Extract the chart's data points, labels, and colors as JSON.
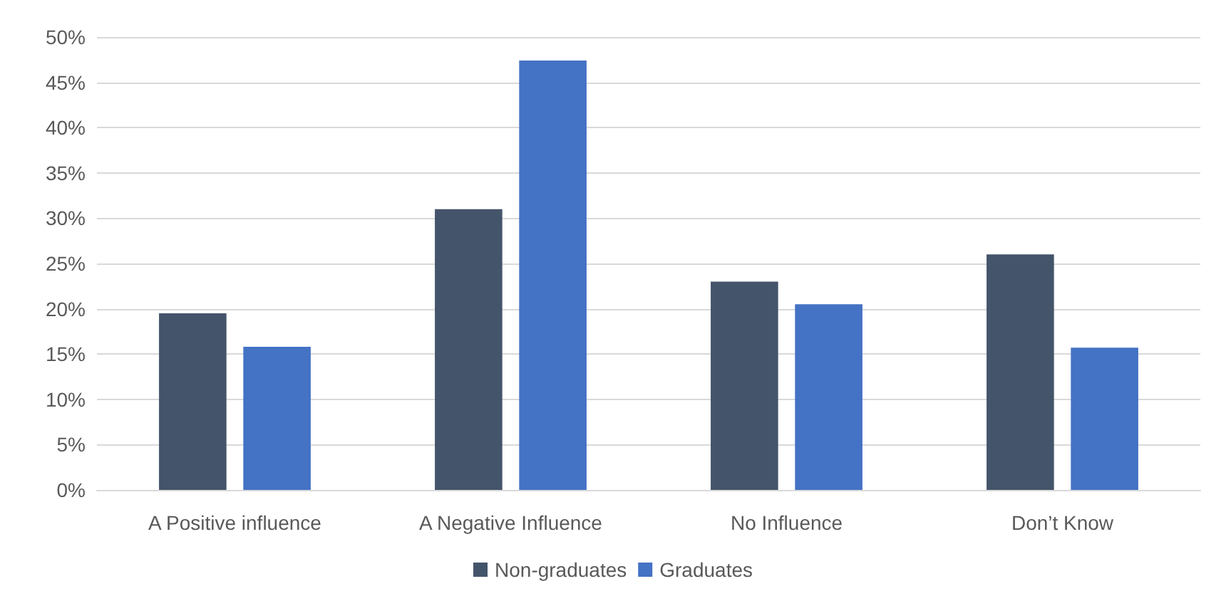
{
  "chart_data": {
    "type": "bar",
    "categories": [
      "A Positive influence",
      "A Negative Influence",
      "No Influence",
      "Don’t Know"
    ],
    "series": [
      {
        "name": "Non-graduates",
        "color": "#44546a",
        "values": [
          19.5,
          31,
          23,
          26
        ]
      },
      {
        "name": "Graduates",
        "color": "#4472c4",
        "values": [
          15.8,
          47.4,
          20.5,
          15.7
        ]
      }
    ],
    "ylim": [
      0,
      50
    ],
    "yticks": [
      {
        "value": 0,
        "label": "0%"
      },
      {
        "value": 5,
        "label": "5%"
      },
      {
        "value": 10,
        "label": "10%"
      },
      {
        "value": 15,
        "label": "15%"
      },
      {
        "value": 20,
        "label": "20%"
      },
      {
        "value": 25,
        "label": "25%"
      },
      {
        "value": 30,
        "label": "30%"
      },
      {
        "value": 35,
        "label": "35%"
      },
      {
        "value": 40,
        "label": "40%"
      },
      {
        "value": 45,
        "label": "45%"
      },
      {
        "value": 50,
        "label": "50%"
      }
    ],
    "grid": "y",
    "legend": "bottom"
  }
}
